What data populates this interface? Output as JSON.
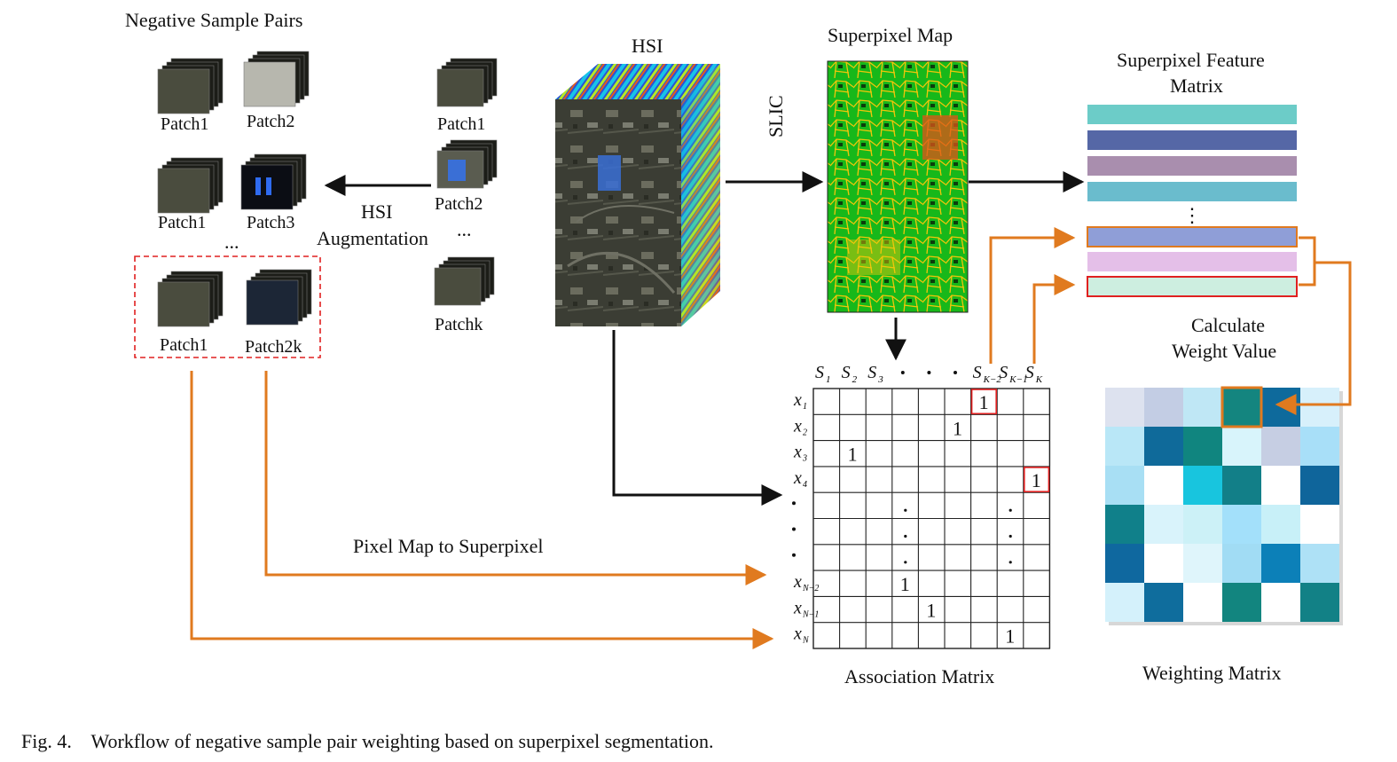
{
  "titles": {
    "negative_pairs": "Negative Sample Pairs",
    "hsi": "HSI",
    "superpixel_map": "Superpixel Map",
    "feature_matrix_line1": "Superpixel Feature",
    "feature_matrix_line2": "Matrix",
    "slic": "SLIC",
    "augmentation_line1": "HSI",
    "augmentation_line2": "Augmentation",
    "calc_line1": "Calculate",
    "calc_line2": "Weight Value",
    "pixel_map": "Pixel  Map to Superpixel",
    "association_matrix": "Association  Matrix",
    "weighting_matrix": "Weighting Matrix",
    "caption": "Fig. 4.    Workflow of negative sample pair weighting based on superpixel segmentation."
  },
  "patches_left": [
    {
      "label": "Patch1"
    },
    {
      "label": "Patch2"
    },
    {
      "label": "Patch1"
    },
    {
      "label": "Patch3"
    },
    {
      "label": "Patch1"
    },
    {
      "label": "Patch2k"
    }
  ],
  "patches_right": [
    {
      "label": "Patch1"
    },
    {
      "label": "Patch2"
    },
    {
      "label": "Patchk"
    }
  ],
  "ellipsis": "...",
  "vdots": "⋮",
  "matrix": {
    "col_headers": [
      "S",
      "S",
      "S",
      "S",
      "S",
      "S"
    ],
    "col_subs": [
      "1",
      "2",
      "3",
      "K−2",
      "K−1",
      "K"
    ],
    "row_headers": [
      "x",
      "x",
      "x",
      "x",
      "x",
      "x",
      "x"
    ],
    "row_subs": [
      "1",
      "2",
      "3",
      "4",
      "N−2",
      "N−1",
      "N"
    ],
    "one": "1"
  },
  "colors": {
    "feature_bars": [
      "#6cccc8",
      "#5567a6",
      "#a98eae",
      "#6abccd",
      "#8f9ed7",
      "#e4bfe8",
      "#cdeee0"
    ],
    "orange": "#e07a1f",
    "red": "#e02020",
    "weight_grid": [
      [
        "#dde2ef",
        "#c3cde4",
        "#bfe7f5",
        "#14857f",
        "#0e6a9c",
        "#d7f0fb"
      ],
      [
        "#b9e7f7",
        "#0f6a9a",
        "#10857f",
        "#d8f4fb",
        "#c6cee3",
        "#a8dff8"
      ],
      [
        "#a8dff4",
        "#ffffff",
        "#18c5de",
        "#127f88",
        "#ffffff",
        "#0f659b"
      ],
      [
        "#10808a",
        "#d9f3fb",
        "#ccf1f7",
        "#a3e0fa",
        "#c8f0f8",
        "#ffffff"
      ],
      [
        "#0f689f",
        "#ffffff",
        "#dff5fb",
        "#a1dcf4",
        "#0c80b8",
        "#aee1f6"
      ],
      [
        "#d4f1fb",
        "#0f6d9d",
        "#ffffff",
        "#12857f",
        "#ffffff",
        "#128186"
      ]
    ]
  }
}
